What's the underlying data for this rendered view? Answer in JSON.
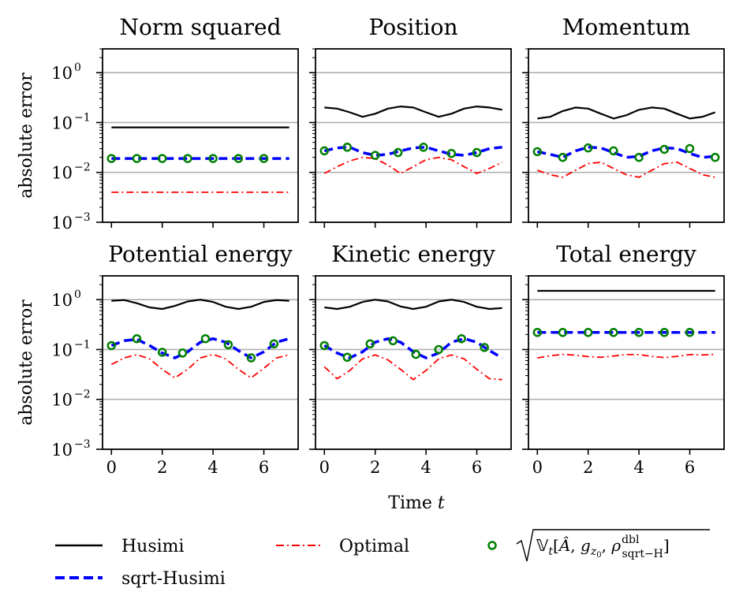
{
  "chart_data": {
    "type": "line",
    "x_label": "Time",
    "x_label_var": "t",
    "y_label": "absolute error",
    "y_scale": "log",
    "ylim": [
      0.001,
      3
    ],
    "xlim": [
      -0.35,
      7.35
    ],
    "x_ticks": [
      0,
      2,
      4,
      6
    ],
    "x_tick_labels": [
      "0",
      "2",
      "4",
      "6"
    ],
    "y_ticks": [
      0.001,
      0.01,
      0.1,
      1
    ],
    "y_tick_labels": [
      {
        "base": "10",
        "exp": "−3"
      },
      {
        "base": "10",
        "exp": "−2"
      },
      {
        "base": "10",
        "exp": "−1"
      },
      {
        "base": "10",
        "exp": "0"
      }
    ],
    "grid": "horizontal at major decades",
    "legend": {
      "placement": "bottom",
      "entries": [
        {
          "key": "husimi",
          "label": "Husimi",
          "color": "#000000",
          "style": "solid"
        },
        {
          "key": "sqrt",
          "label": "sqrt-Husimi",
          "color": "#0000ff",
          "style": "dashed"
        },
        {
          "key": "optimal",
          "label": "Optimal",
          "color": "#ff0000",
          "style": "dashdot"
        },
        {
          "key": "markers",
          "label": "√(V_t[Â, g_z0, ρ^dbl_sqrt-H])",
          "color": "#008000",
          "style": "circle-marker"
        }
      ]
    },
    "panels": [
      {
        "title": "Norm squared",
        "series": {
          "husimi": {
            "x": [
              0,
              7
            ],
            "y": [
              0.08,
              0.08
            ]
          },
          "sqrt": {
            "x": [
              0,
              7
            ],
            "y": [
              0.019,
              0.019
            ]
          },
          "optimal": {
            "x": [
              0,
              7
            ],
            "y": [
              0.004,
              0.004
            ]
          },
          "markers": {
            "x": [
              0,
              1,
              2,
              3,
              4,
              5,
              6
            ],
            "y": [
              0.019,
              0.019,
              0.019,
              0.019,
              0.019,
              0.019,
              0.019
            ]
          }
        }
      },
      {
        "title": "Position",
        "series": {
          "husimi": {
            "x": [
              0,
              0.5,
              1,
              1.5,
              2,
              2.5,
              3,
              3.5,
              4,
              4.5,
              5,
              5.5,
              6,
              6.5,
              7
            ],
            "y": [
              0.2,
              0.19,
              0.16,
              0.13,
              0.15,
              0.19,
              0.21,
              0.2,
              0.16,
              0.13,
              0.15,
              0.19,
              0.21,
              0.2,
              0.18
            ]
          },
          "sqrt": {
            "x": [
              0,
              0.5,
              1,
              1.5,
              2,
              2.5,
              3,
              3.5,
              4,
              4.5,
              5,
              5.5,
              6,
              6.5,
              7
            ],
            "y": [
              0.027,
              0.031,
              0.032,
              0.025,
              0.022,
              0.023,
              0.027,
              0.031,
              0.032,
              0.027,
              0.023,
              0.022,
              0.025,
              0.03,
              0.032
            ]
          },
          "optimal": {
            "x": [
              0,
              0.5,
              1,
              1.5,
              2,
              2.5,
              3,
              3.5,
              4,
              4.5,
              5,
              5.5,
              6,
              6.5,
              7
            ],
            "y": [
              0.0095,
              0.013,
              0.017,
              0.02,
              0.019,
              0.014,
              0.0095,
              0.013,
              0.018,
              0.02,
              0.018,
              0.013,
              0.0095,
              0.012,
              0.016
            ]
          },
          "markers": {
            "x": [
              0,
              0.9,
              2,
              2.9,
              3.9,
              5,
              6
            ],
            "y": [
              0.027,
              0.032,
              0.022,
              0.025,
              0.032,
              0.024,
              0.025
            ]
          }
        }
      },
      {
        "title": "Momentum",
        "series": {
          "husimi": {
            "x": [
              0,
              0.5,
              1,
              1.5,
              2,
              2.5,
              3,
              3.5,
              4,
              4.5,
              5,
              5.5,
              6,
              6.5,
              7
            ],
            "y": [
              0.12,
              0.13,
              0.17,
              0.2,
              0.19,
              0.15,
              0.12,
              0.14,
              0.18,
              0.2,
              0.19,
              0.15,
              0.12,
              0.13,
              0.16
            ]
          },
          "sqrt": {
            "x": [
              0,
              0.5,
              1,
              1.5,
              2,
              2.5,
              3,
              3.5,
              4,
              4.5,
              5,
              5.5,
              6,
              6.5,
              7
            ],
            "y": [
              0.026,
              0.023,
              0.02,
              0.027,
              0.032,
              0.031,
              0.025,
              0.02,
              0.021,
              0.027,
              0.031,
              0.03,
              0.024,
              0.02,
              0.021
            ]
          },
          "optimal": {
            "x": [
              0,
              0.5,
              1,
              1.5,
              2,
              2.5,
              3,
              3.5,
              4,
              4.5,
              5,
              5.5,
              6,
              6.5,
              7
            ],
            "y": [
              0.011,
              0.009,
              0.008,
              0.011,
              0.015,
              0.016,
              0.012,
              0.009,
              0.008,
              0.011,
              0.015,
              0.016,
              0.012,
              0.009,
              0.008
            ]
          },
          "markers": {
            "x": [
              0,
              1,
              2,
              3,
              4,
              5,
              6,
              7
            ],
            "y": [
              0.026,
              0.02,
              0.031,
              0.027,
              0.02,
              0.029,
              0.03,
              0.02
            ]
          }
        }
      },
      {
        "title": "Potential energy",
        "series": {
          "husimi": {
            "x": [
              0,
              0.5,
              1,
              1.5,
              2,
              2.5,
              3,
              3.5,
              4,
              4.5,
              5,
              5.5,
              6,
              6.5,
              7
            ],
            "y": [
              0.95,
              0.98,
              0.85,
              0.7,
              0.65,
              0.75,
              0.92,
              1.0,
              0.9,
              0.72,
              0.65,
              0.72,
              0.9,
              0.98,
              0.95
            ]
          },
          "sqrt": {
            "x": [
              0,
              0.5,
              1,
              1.5,
              2,
              2.5,
              3,
              3.5,
              4,
              4.5,
              5,
              5.5,
              6,
              6.5,
              7
            ],
            "y": [
              0.12,
              0.15,
              0.16,
              0.12,
              0.085,
              0.068,
              0.09,
              0.14,
              0.165,
              0.14,
              0.095,
              0.068,
              0.09,
              0.14,
              0.165
            ]
          },
          "optimal": {
            "x": [
              0,
              0.5,
              1,
              1.5,
              2,
              2.5,
              3,
              3.5,
              4,
              4.5,
              5,
              5.5,
              6,
              6.5,
              7
            ],
            "y": [
              0.05,
              0.068,
              0.079,
              0.065,
              0.04,
              0.027,
              0.04,
              0.068,
              0.08,
              0.065,
              0.04,
              0.027,
              0.042,
              0.068,
              0.078
            ]
          },
          "markers": {
            "x": [
              0,
              1,
              2,
              2.8,
              3.7,
              4.6,
              5.5,
              6.4
            ],
            "y": [
              0.12,
              0.165,
              0.088,
              0.085,
              0.165,
              0.125,
              0.068,
              0.13
            ]
          }
        }
      },
      {
        "title": "Kinetic energy",
        "series": {
          "husimi": {
            "x": [
              0,
              0.5,
              1,
              1.5,
              2,
              2.5,
              3,
              3.5,
              4,
              4.5,
              5,
              5.5,
              6,
              6.5,
              7
            ],
            "y": [
              0.7,
              0.65,
              0.72,
              0.9,
              1.0,
              0.92,
              0.73,
              0.65,
              0.72,
              0.92,
              1.0,
              0.9,
              0.72,
              0.65,
              0.68
            ]
          },
          "sqrt": {
            "x": [
              0,
              0.5,
              1,
              1.5,
              2,
              2.5,
              3,
              3.5,
              4,
              4.5,
              5,
              5.5,
              6,
              6.5,
              7
            ],
            "y": [
              0.12,
              0.085,
              0.068,
              0.09,
              0.14,
              0.165,
              0.14,
              0.09,
              0.068,
              0.085,
              0.14,
              0.165,
              0.14,
              0.095,
              0.068
            ]
          },
          "optimal": {
            "x": [
              0,
              0.5,
              1,
              1.5,
              2,
              2.5,
              3,
              3.5,
              4,
              4.5,
              5,
              5.5,
              6,
              6.5,
              7
            ],
            "y": [
              0.045,
              0.026,
              0.038,
              0.065,
              0.078,
              0.062,
              0.04,
              0.025,
              0.038,
              0.065,
              0.078,
              0.065,
              0.04,
              0.026,
              0.025
            ]
          },
          "markers": {
            "x": [
              0,
              0.9,
              1.8,
              2.7,
              3.6,
              4.5,
              5.4,
              6.3
            ],
            "y": [
              0.12,
              0.07,
              0.13,
              0.15,
              0.08,
              0.1,
              0.165,
              0.11
            ]
          }
        }
      },
      {
        "title": "Total energy",
        "series": {
          "husimi": {
            "x": [
              0,
              7
            ],
            "y": [
              1.5,
              1.5
            ]
          },
          "sqrt": {
            "x": [
              0,
              7
            ],
            "y": [
              0.22,
              0.22
            ]
          },
          "optimal": {
            "x": [
              0,
              0.5,
              1,
              1.5,
              2,
              2.5,
              3,
              3.5,
              4,
              4.5,
              5,
              5.5,
              6,
              6.5,
              7
            ],
            "y": [
              0.068,
              0.075,
              0.08,
              0.077,
              0.072,
              0.07,
              0.074,
              0.079,
              0.079,
              0.073,
              0.069,
              0.073,
              0.079,
              0.078,
              0.08
            ]
          },
          "markers": {
            "x": [
              0,
              1,
              2,
              3,
              4,
              5,
              6
            ],
            "y": [
              0.22,
              0.22,
              0.22,
              0.22,
              0.22,
              0.22,
              0.22
            ]
          }
        }
      }
    ]
  }
}
